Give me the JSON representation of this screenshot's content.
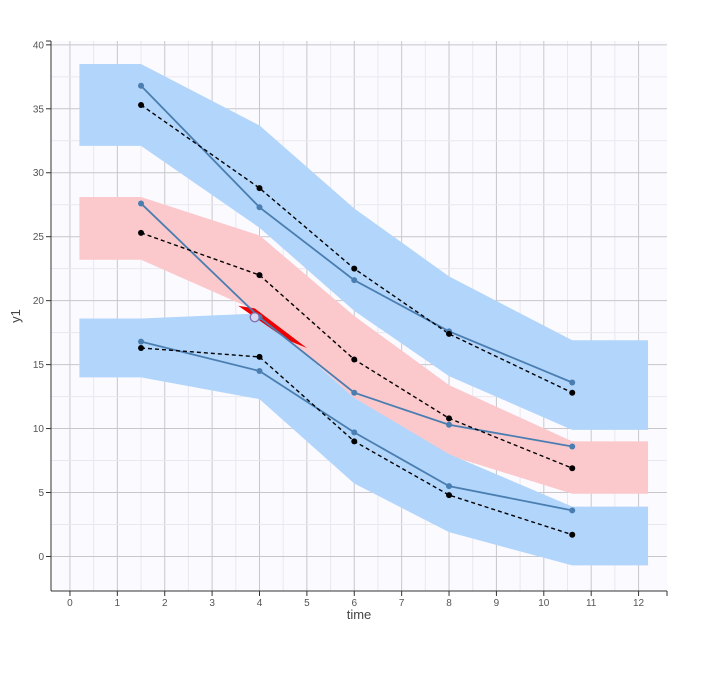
{
  "chart_data": {
    "type": "line",
    "xlabel": "time",
    "ylabel": "y1",
    "xlim": [
      -0.4,
      12.6
    ],
    "ylim": [
      -2.7,
      40.3
    ],
    "xticks": [
      0,
      1,
      2,
      3,
      4,
      5,
      6,
      7,
      8,
      9,
      10,
      11,
      12
    ],
    "yticks": [
      0,
      5,
      10,
      15,
      20,
      25,
      30,
      35,
      40
    ],
    "grid": true,
    "bands": [
      {
        "color": "#b2d5fb",
        "x": [
          0.2,
          1.5,
          1.5,
          4,
          6,
          8,
          10.6,
          10.6,
          12.2
        ],
        "upper": [
          38.5,
          38.5,
          38.5,
          33.7,
          27.2,
          21.9,
          16.9,
          16.9,
          16.9
        ],
        "lower": [
          32.1,
          32.1,
          32.1,
          25.7,
          19.2,
          14.1,
          9.9,
          9.9,
          9.9
        ]
      },
      {
        "color": "#fbc8cc",
        "x": [
          0.2,
          1.5,
          1.5,
          4,
          6,
          8,
          10.6,
          10.6,
          12.2
        ],
        "upper": [
          28.1,
          28.1,
          28.1,
          25.1,
          18.8,
          13.4,
          9.0,
          9.0,
          9.0
        ],
        "lower": [
          23.2,
          23.2,
          23.2,
          19.1,
          12.4,
          7.9,
          4.9,
          4.9,
          4.9
        ]
      },
      {
        "color": "#b2d5fb",
        "x": [
          0.2,
          1.5,
          1.5,
          4,
          6,
          8,
          10.6,
          10.6,
          12.2
        ],
        "upper": [
          18.6,
          18.6,
          18.6,
          19.0,
          12.4,
          8.0,
          3.9,
          3.9,
          3.9
        ],
        "lower": [
          14.0,
          14.0,
          14.0,
          12.3,
          5.7,
          1.9,
          -0.7,
          -0.7,
          -0.7
        ]
      }
    ],
    "highlight": {
      "color": "#ee0000",
      "x": [
        3.55,
        3.9,
        5.0,
        4.6
      ],
      "y": [
        19.6,
        19.4,
        16.3,
        16.9
      ]
    },
    "series": [
      {
        "style": "solid",
        "color": "#4a7eb0",
        "x": [
          1.5,
          4,
          6,
          8,
          10.6
        ],
        "values": [
          36.8,
          27.3,
          21.6,
          17.6,
          13.6
        ]
      },
      {
        "style": "solid",
        "color": "#4a7eb0",
        "x": [
          1.5,
          4,
          6,
          8,
          10.6
        ],
        "values": [
          27.6,
          18.7,
          12.8,
          10.3,
          8.6
        ]
      },
      {
        "style": "solid",
        "color": "#4a7eb0",
        "x": [
          1.5,
          4,
          6,
          8,
          10.6
        ],
        "values": [
          16.8,
          14.5,
          9.7,
          5.5,
          3.6
        ]
      },
      {
        "style": "dashed",
        "color": "#000000",
        "x": [
          1.5,
          4,
          6,
          8,
          10.6
        ],
        "values": [
          35.3,
          28.8,
          22.5,
          17.4,
          12.8
        ]
      },
      {
        "style": "dashed",
        "color": "#000000",
        "x": [
          1.5,
          4,
          6,
          8,
          10.6
        ],
        "values": [
          25.3,
          22.0,
          15.4,
          10.8,
          6.9
        ]
      },
      {
        "style": "dashed",
        "color": "#000000",
        "x": [
          1.5,
          4,
          6,
          8,
          10.6
        ],
        "values": [
          16.3,
          15.6,
          9.0,
          4.8,
          1.7
        ]
      }
    ],
    "highlighted_point": {
      "x": 3.9,
      "y": 18.7
    }
  }
}
